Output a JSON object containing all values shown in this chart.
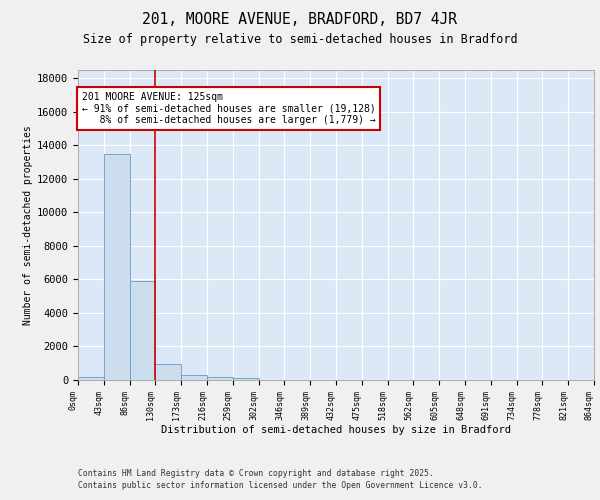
{
  "title1": "201, MOORE AVENUE, BRADFORD, BD7 4JR",
  "title2": "Size of property relative to semi-detached houses in Bradford",
  "xlabel": "Distribution of semi-detached houses by size in Bradford",
  "ylabel": "Number of semi-detached properties",
  "bar_values": [
    200,
    13500,
    5900,
    950,
    300,
    150,
    100,
    0,
    0,
    0,
    0,
    0,
    0,
    0,
    0,
    0,
    0,
    0,
    0,
    0
  ],
  "bin_labels": [
    "0sqm",
    "43sqm",
    "86sqm",
    "130sqm",
    "173sqm",
    "216sqm",
    "259sqm",
    "302sqm",
    "346sqm",
    "389sqm",
    "432sqm",
    "475sqm",
    "518sqm",
    "562sqm",
    "605sqm",
    "648sqm",
    "691sqm",
    "734sqm",
    "778sqm",
    "821sqm",
    "864sqm"
  ],
  "bar_color": "#ccdded",
  "bar_edge_color": "#6699cc",
  "vline_x": 3,
  "vline_color": "#cc0000",
  "annotation_text": "201 MOORE AVENUE: 125sqm\n← 91% of semi-detached houses are smaller (19,128)\n   8% of semi-detached houses are larger (1,779) →",
  "ylim": [
    0,
    18500
  ],
  "bg_color": "#dce8f5",
  "grid_color": "#ffffff",
  "footer1": "Contains HM Land Registry data © Crown copyright and database right 2025.",
  "footer2": "Contains public sector information licensed under the Open Government Licence v3.0.",
  "yticks": [
    0,
    2000,
    4000,
    6000,
    8000,
    10000,
    12000,
    14000,
    16000,
    18000
  ]
}
